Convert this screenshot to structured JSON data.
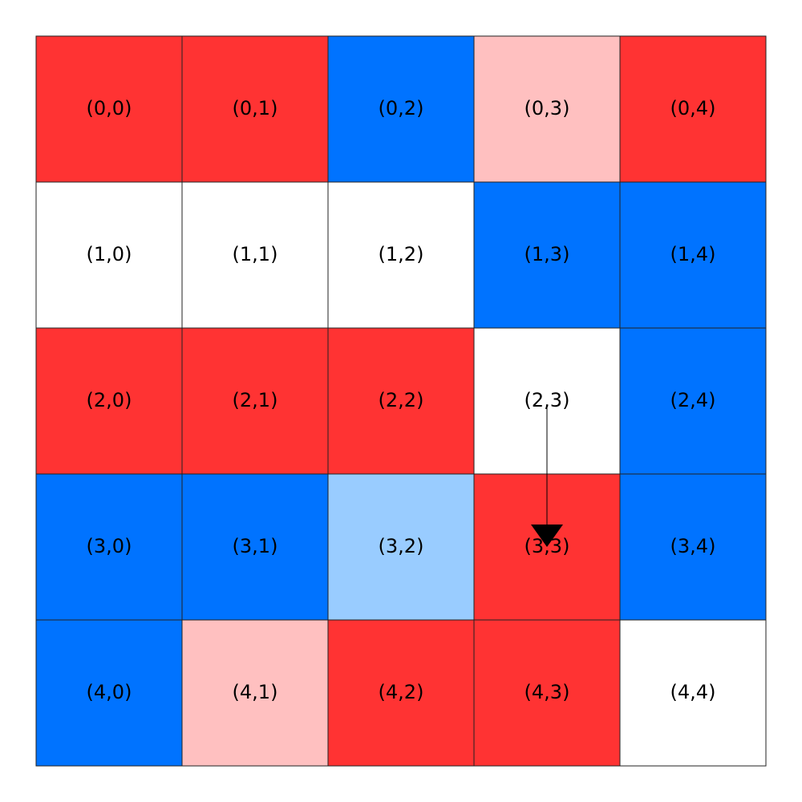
{
  "grid": {
    "rows": [
      [
        {
          "label": "(0,0)",
          "color": "#ff3333"
        },
        {
          "label": "(0,1)",
          "color": "#ff3333"
        },
        {
          "label": "(0,2)",
          "color": "#0073ff"
        },
        {
          "label": "(0,3)",
          "color": "#ffc0c0"
        },
        {
          "label": "(0,4)",
          "color": "#ff3333"
        }
      ],
      [
        {
          "label": "(1,0)",
          "color": "#ffffff"
        },
        {
          "label": "(1,1)",
          "color": "#ffffff"
        },
        {
          "label": "(1,2)",
          "color": "#ffffff"
        },
        {
          "label": "(1,3)",
          "color": "#0073ff"
        },
        {
          "label": "(1,4)",
          "color": "#0073ff"
        }
      ],
      [
        {
          "label": "(2,0)",
          "color": "#ff3333"
        },
        {
          "label": "(2,1)",
          "color": "#ff3333"
        },
        {
          "label": "(2,2)",
          "color": "#ff3333"
        },
        {
          "label": "(2,3)",
          "color": "#ffffff"
        },
        {
          "label": "(2,4)",
          "color": "#0073ff"
        }
      ],
      [
        {
          "label": "(3,0)",
          "color": "#0073ff"
        },
        {
          "label": "(3,1)",
          "color": "#0073ff"
        },
        {
          "label": "(3,2)",
          "color": "#99ccff"
        },
        {
          "label": "(3,3)",
          "color": "#ff3333"
        },
        {
          "label": "(3,4)",
          "color": "#0073ff"
        }
      ],
      [
        {
          "label": "(4,0)",
          "color": "#0073ff"
        },
        {
          "label": "(4,1)",
          "color": "#ffc0c0"
        },
        {
          "label": "(4,2)",
          "color": "#ff3333"
        },
        {
          "label": "(4,3)",
          "color": "#ff3333"
        },
        {
          "label": "(4,4)",
          "color": "#ffffff"
        }
      ]
    ],
    "arrow": {
      "from": [
        2,
        3
      ],
      "to": [
        3,
        3
      ]
    }
  }
}
